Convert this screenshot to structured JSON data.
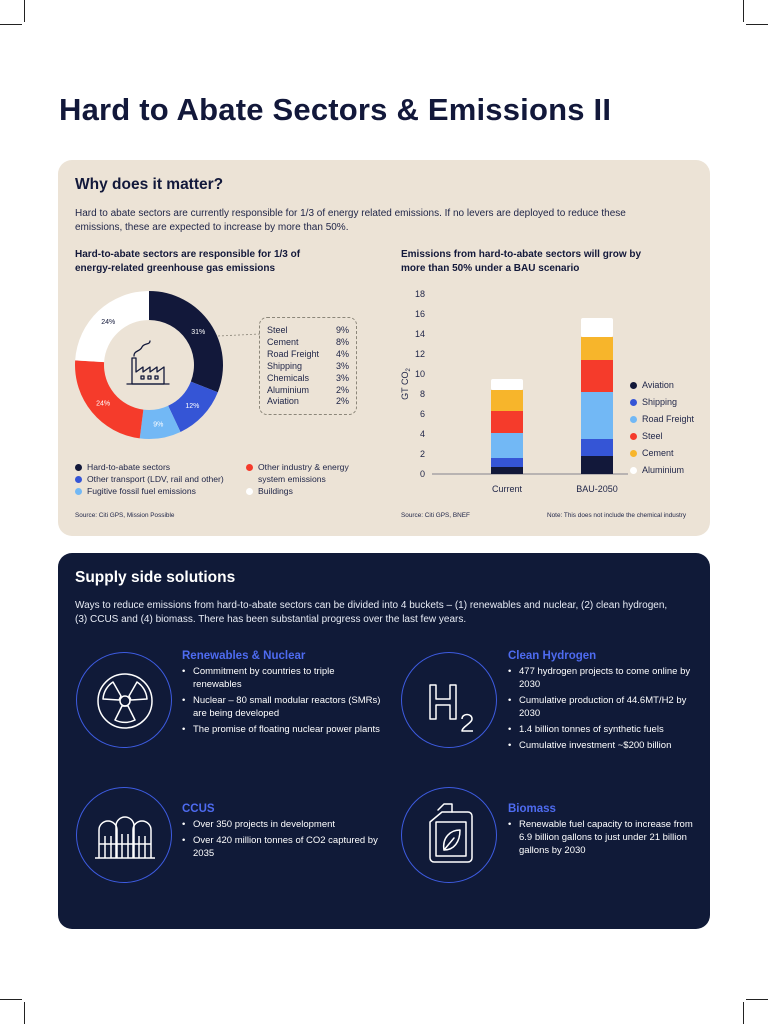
{
  "page": {
    "title": "Hard to Abate Sectors & Emissions II"
  },
  "why": {
    "heading": "Why does it matter?",
    "intro": "Hard to abate sectors are currently responsible for 1/3 of energy related emissions. If no levers are deployed to reduce these emissions, these are expected to increase by more than 50%."
  },
  "donut": {
    "title": "Hard-to-abate sectors are responsible for 1/3 of energy-related greenhouse gas emissions",
    "source": "Source: Citi GPS, Mission Possible",
    "icon": "factory-icon",
    "callout": [
      {
        "label": "Steel",
        "value": "9%"
      },
      {
        "label": "Cement",
        "value": "8%"
      },
      {
        "label": "Road Freight",
        "value": "4%"
      },
      {
        "label": "Shipping",
        "value": "3%"
      },
      {
        "label": "Chemicals",
        "value": "3%"
      },
      {
        "label": "Aluminium",
        "value": "2%"
      },
      {
        "label": "Aviation",
        "value": "2%"
      }
    ],
    "legend": [
      {
        "label": "Hard-to-abate sectors",
        "color": "#12183a"
      },
      {
        "label": "Other transport (LDV, rail and other)",
        "color": "#3555d6"
      },
      {
        "label": "Fugitive fossil fuel emissions",
        "color": "#72b8f5"
      },
      {
        "label": "Other industry & energy",
        "label2": "system emissions",
        "color": "#f53b2b"
      },
      {
        "label": "Buildings",
        "color": "#ffffff"
      }
    ]
  },
  "chart_data": [
    {
      "type": "pie",
      "values": [
        31,
        12,
        9,
        24,
        24
      ],
      "labels": [
        "31%",
        "12%",
        "9%",
        "24%",
        "24%"
      ],
      "colors": [
        "#12183a",
        "#3555d6",
        "#72b8f5",
        "#f53b2b",
        "#ffffff"
      ]
    },
    {
      "type": "bar",
      "stacked": true,
      "title": "Emissions from hard-to-abate sectors will grow by more than 50% under a BAU scenario",
      "ylabel": "GT CO",
      "ylabel_sub": "2",
      "ylim": [
        0,
        18
      ],
      "yticks": [
        0,
        2,
        4,
        6,
        8,
        10,
        12,
        14,
        16,
        18
      ],
      "categories": [
        "Current",
        "BAU-2050"
      ],
      "series": [
        {
          "name": "Aviation",
          "color": "#12183a",
          "values": [
            0.7,
            1.8
          ]
        },
        {
          "name": "Shipping",
          "color": "#3555d6",
          "values": [
            0.9,
            1.7
          ]
        },
        {
          "name": "Road Freight",
          "color": "#72b8f5",
          "values": [
            2.5,
            4.7
          ]
        },
        {
          "name": "Steel",
          "color": "#f53b2b",
          "values": [
            2.2,
            3.2
          ]
        },
        {
          "name": "Cement",
          "color": "#f7b52b",
          "values": [
            2.1,
            2.3
          ]
        },
        {
          "name": "Aluminium",
          "color": "#ffffff",
          "values": [
            1.1,
            1.9
          ]
        }
      ],
      "source": "Source: Citi GPS, BNEF",
      "note": "Note: This does not include the chemical industry"
    }
  ],
  "supply": {
    "heading": "Supply side solutions",
    "intro": "Ways to reduce emissions from hard-to-abate sectors can be divided into 4 buckets – (1) renewables and nuclear, (2) clean hydrogen, (3) CCUS and (4) biomass. There has been substantial progress over the last few years.",
    "items": [
      {
        "title": "Renewables & Nuclear",
        "icon": "radiation-icon",
        "bullets": [
          "Commitment by countries to triple renewables",
          "Nuclear – 80 small modular reactors (SMRs) are being developed",
          "The promise of floating nuclear power plants"
        ]
      },
      {
        "title": "Clean Hydrogen",
        "icon": "hydrogen-icon",
        "bullets": [
          "477 hydrogen projects to come online by 2030",
          "Cumulative production of 44.6MT/H2 by 2030",
          "1.4 billion tonnes of synthetic fuels",
          "Cumulative investment ~$200 billion"
        ]
      },
      {
        "title": "CCUS",
        "icon": "storage-tanks-icon",
        "bullets": [
          "Over 350 projects in development",
          "Over 420 million tonnes of CO2 captured by 2035"
        ]
      },
      {
        "title": "Biomass",
        "icon": "biofuel-can-icon",
        "bullets": [
          "Renewable fuel capacity to increase from 6.9 billion gallons to just under 21 billion gallons by 2030"
        ]
      }
    ]
  }
}
